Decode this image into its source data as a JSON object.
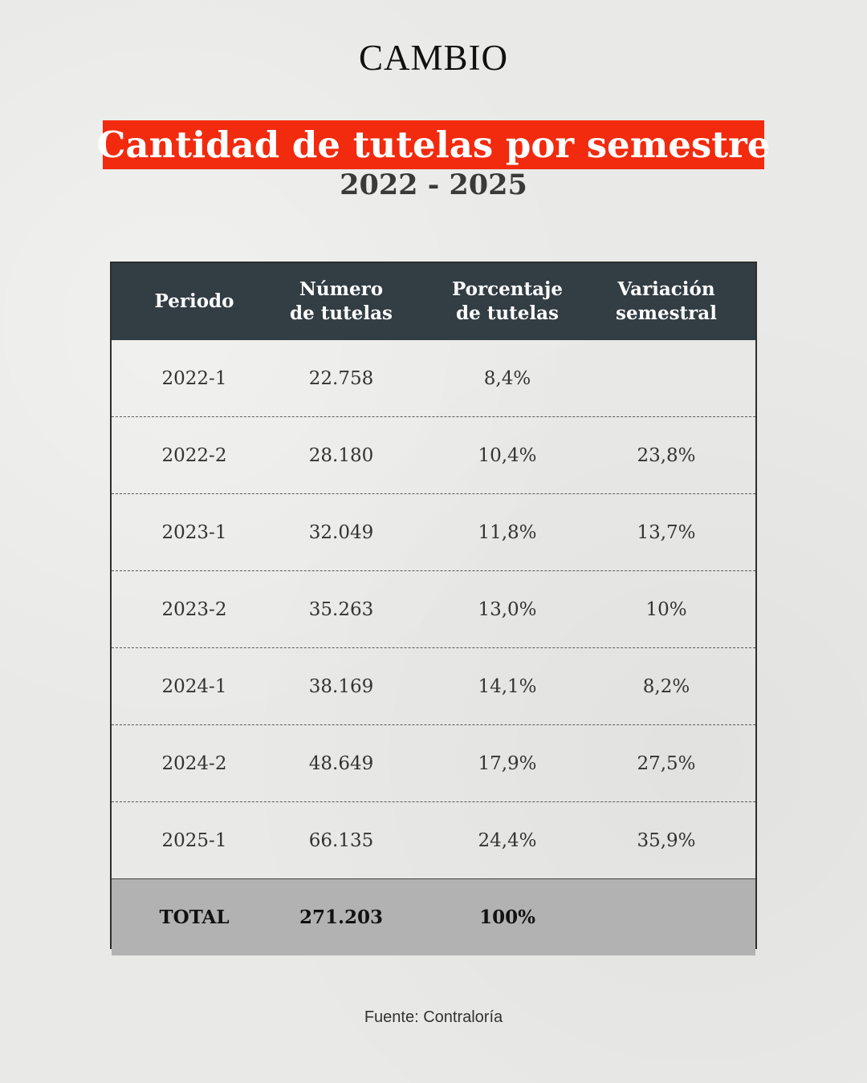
{
  "logo": "CAMBIO",
  "chart_data": {
    "type": "table",
    "title": "Cantidad de tutelas por semestre",
    "subtitle": "2022 - 2025",
    "columns": [
      [
        "Periodo"
      ],
      [
        "Número",
        "de tutelas"
      ],
      [
        "Porcentaje",
        "de tutelas"
      ],
      [
        "Variación",
        "semestral"
      ]
    ],
    "rows": [
      [
        "2022-1",
        "22.758",
        "8,4%",
        ""
      ],
      [
        "2022-2",
        "28.180",
        "10,4%",
        "23,8%"
      ],
      [
        "2023-1",
        "32.049",
        "11,8%",
        "13,7%"
      ],
      [
        "2023-2",
        "35.263",
        "13,0%",
        "10%"
      ],
      [
        "2024-1",
        "38.169",
        "14,1%",
        "8,2%"
      ],
      [
        "2024-2",
        "48.649",
        "17,9%",
        "27,5%"
      ],
      [
        "2025-1",
        "66.135",
        "24,4%",
        "35,9%"
      ]
    ],
    "total": [
      "TOTAL",
      "271.203",
      "100%",
      ""
    ]
  },
  "source": "Fuente: Contraloría"
}
